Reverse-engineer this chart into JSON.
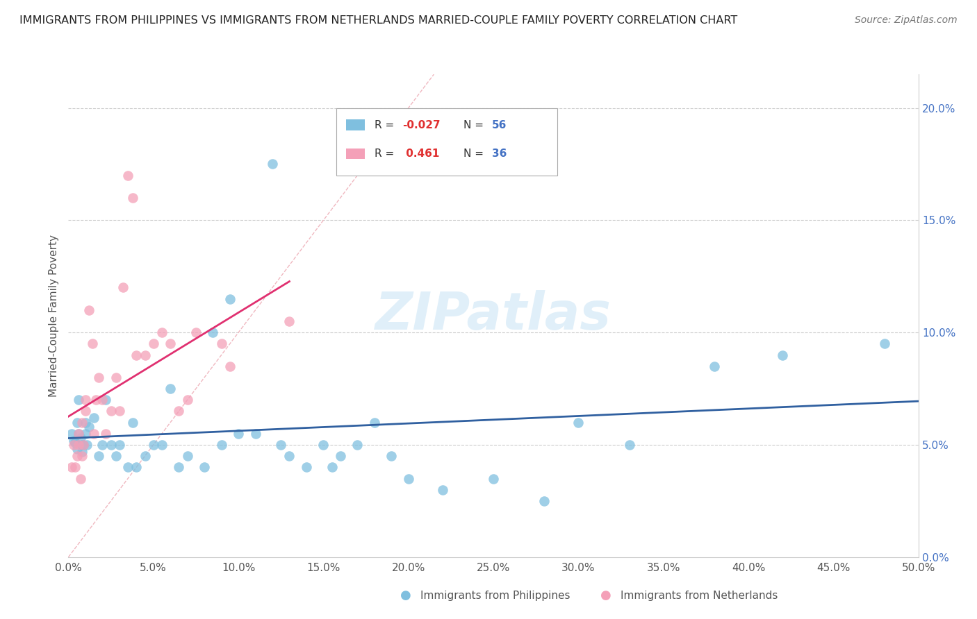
{
  "title": "IMMIGRANTS FROM PHILIPPINES VS IMMIGRANTS FROM NETHERLANDS MARRIED-COUPLE FAMILY POVERTY CORRELATION CHART",
  "source": "Source: ZipAtlas.com",
  "ylabel": "Married-Couple Family Poverty",
  "xlim": [
    0.0,
    0.5
  ],
  "ylim": [
    0.0,
    0.215
  ],
  "xticks": [
    0.0,
    0.05,
    0.1,
    0.15,
    0.2,
    0.25,
    0.3,
    0.35,
    0.4,
    0.45,
    0.5
  ],
  "yticks": [
    0.0,
    0.05,
    0.1,
    0.15,
    0.2
  ],
  "ytick_labels": [
    "0.0%",
    "5.0%",
    "10.0%",
    "15.0%",
    "20.0%"
  ],
  "xtick_labels": [
    "0.0%",
    "5.0%",
    "10.0%",
    "15.0%",
    "20.0%",
    "25.0%",
    "30.0%",
    "35.0%",
    "40.0%",
    "45.0%",
    "50.0%"
  ],
  "color_blue": "#7fbfdf",
  "color_pink": "#f4a0b8",
  "color_trend_blue": "#3060a0",
  "color_trend_pink": "#e03070",
  "color_diagonal": "#f0b8c0",
  "watermark": "ZIPatlas",
  "philippines_x": [
    0.002,
    0.003,
    0.004,
    0.005,
    0.005,
    0.006,
    0.006,
    0.007,
    0.008,
    0.008,
    0.009,
    0.01,
    0.01,
    0.011,
    0.012,
    0.015,
    0.018,
    0.02,
    0.022,
    0.025,
    0.028,
    0.03,
    0.035,
    0.038,
    0.04,
    0.045,
    0.05,
    0.055,
    0.06,
    0.065,
    0.07,
    0.08,
    0.085,
    0.09,
    0.095,
    0.1,
    0.11,
    0.12,
    0.125,
    0.13,
    0.14,
    0.15,
    0.155,
    0.16,
    0.17,
    0.18,
    0.19,
    0.2,
    0.22,
    0.25,
    0.28,
    0.3,
    0.33,
    0.38,
    0.42,
    0.48
  ],
  "philippines_y": [
    0.055,
    0.052,
    0.051,
    0.048,
    0.06,
    0.055,
    0.07,
    0.053,
    0.05,
    0.047,
    0.05,
    0.055,
    0.06,
    0.05,
    0.058,
    0.062,
    0.045,
    0.05,
    0.07,
    0.05,
    0.045,
    0.05,
    0.04,
    0.06,
    0.04,
    0.045,
    0.05,
    0.05,
    0.075,
    0.04,
    0.045,
    0.04,
    0.1,
    0.05,
    0.115,
    0.055,
    0.055,
    0.175,
    0.05,
    0.045,
    0.04,
    0.05,
    0.04,
    0.045,
    0.05,
    0.06,
    0.045,
    0.035,
    0.03,
    0.035,
    0.025,
    0.06,
    0.05,
    0.085,
    0.09,
    0.095
  ],
  "netherlands_x": [
    0.002,
    0.003,
    0.004,
    0.005,
    0.006,
    0.006,
    0.007,
    0.008,
    0.008,
    0.009,
    0.01,
    0.01,
    0.012,
    0.014,
    0.015,
    0.016,
    0.018,
    0.02,
    0.022,
    0.025,
    0.028,
    0.03,
    0.032,
    0.035,
    0.038,
    0.04,
    0.045,
    0.05,
    0.055,
    0.06,
    0.065,
    0.07,
    0.075,
    0.09,
    0.095,
    0.13
  ],
  "netherlands_y": [
    0.04,
    0.05,
    0.04,
    0.045,
    0.055,
    0.05,
    0.035,
    0.06,
    0.045,
    0.05,
    0.065,
    0.07,
    0.11,
    0.095,
    0.055,
    0.07,
    0.08,
    0.07,
    0.055,
    0.065,
    0.08,
    0.065,
    0.12,
    0.17,
    0.16,
    0.09,
    0.09,
    0.095,
    0.1,
    0.095,
    0.065,
    0.07,
    0.1,
    0.095,
    0.085,
    0.105
  ]
}
